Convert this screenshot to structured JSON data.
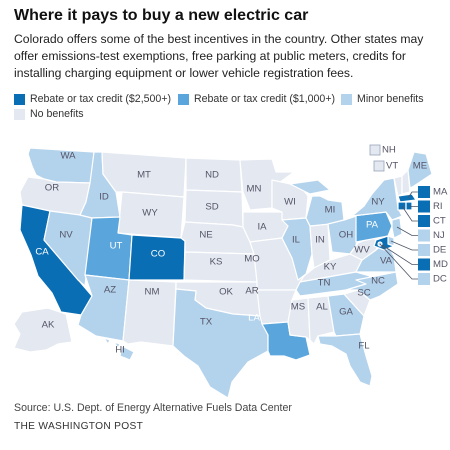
{
  "header": {
    "title": "Where it pays to buy a new electric car",
    "subtitle": "Colorado offers some of the best incentives in the country. Other states may offer emissions-test exemptions, free parking at public meters, credits for installing charging equipment or lower vehicle registration fees."
  },
  "legend": [
    {
      "label": "Rebate or tax credit ($2,500+)",
      "color": "#0a6eb4"
    },
    {
      "label": "Rebate or tax credit ($1,000+)",
      "color": "#5aa6dc"
    },
    {
      "label": "Minor benefits",
      "color": "#b3d2ec"
    },
    {
      "label": "No benefits",
      "color": "#e3e8f1"
    }
  ],
  "map": {
    "colors": {
      "strong": "#0a6eb4",
      "medium": "#5aa6dc",
      "minor": "#b3d2ec",
      "none": "#e3e8f1"
    },
    "states": {
      "WA": "minor",
      "OR": "none",
      "CA": "strong",
      "NV": "minor",
      "ID": "minor",
      "MT": "none",
      "WY": "none",
      "UT": "medium",
      "CO": "strong",
      "AZ": "minor",
      "NM": "none",
      "ND": "none",
      "SD": "none",
      "NE": "none",
      "KS": "none",
      "OK": "none",
      "TX": "minor",
      "MN": "none",
      "IA": "none",
      "MO": "none",
      "AR": "none",
      "LA": "medium",
      "WI": "none",
      "IL": "minor",
      "IN": "none",
      "MI": "minor",
      "OH": "minor",
      "KY": "none",
      "TN": "minor",
      "MS": "none",
      "AL": "none",
      "GA": "minor",
      "FL": "minor",
      "SC": "none",
      "NC": "minor",
      "VA": "minor",
      "WV": "none",
      "PA": "medium",
      "NY": "minor",
      "AK": "none",
      "HI": "minor",
      "VT": "none",
      "NH": "none",
      "ME": "minor",
      "MA": "strong",
      "RI": "strong",
      "CT": "strong",
      "NJ": "minor",
      "DE": "minor",
      "MD": "strong",
      "DC": "minor"
    },
    "small_states": [
      "MA",
      "RI",
      "CT",
      "NJ",
      "DE",
      "MD",
      "DC"
    ],
    "northeast_labels": [
      "NH",
      "VT"
    ]
  },
  "footer": {
    "source": "Source: U.S. Dept. of Energy Alternative Fuels Data Center",
    "credit": "THE WASHINGTON POST"
  }
}
